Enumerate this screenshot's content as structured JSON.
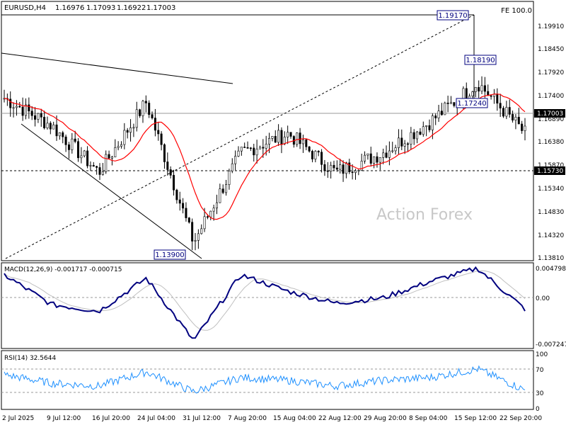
{
  "header": {
    "symbol": "EURUSD,H4",
    "open": "1.16976",
    "high": "1.17093",
    "low": "1.16922",
    "close": "1.17003",
    "fib_label": "FE 100.0"
  },
  "watermark": "Action Forex",
  "price_panel": {
    "ticks": [
      "1.19910",
      "1.18450",
      "1.17920",
      "1.17400",
      "1.16890",
      "1.16380",
      "1.15870",
      "1.15340",
      "1.14830",
      "1.14320",
      "1.13810"
    ],
    "current_price": "1.17003",
    "support_level": "1.15730",
    "annotations": [
      "1.19170",
      "1.18190",
      "1.17240",
      "1.13900"
    ]
  },
  "macd_panel": {
    "label": "MACD(12,26,9) -0.001717 -0.000715",
    "ticks": [
      "0.004798",
      "0.00",
      "-0.007247"
    ],
    "zero_label": "0.00"
  },
  "rsi_panel": {
    "label": "RSI(14) 32.5644",
    "ticks": [
      "100",
      "70",
      "30",
      "0"
    ]
  },
  "time_axis": [
    "2 Jul 2025",
    "9 Jul 12:00",
    "16 Jul 20:00",
    "24 Jul 04:00",
    "31 Jul 12:00",
    "7 Aug 20:00",
    "15 Aug 04:00",
    "22 Aug 12:00",
    "29 Aug 20:00",
    "8 Sep 04:00",
    "15 Sep 12:00",
    "22 Sep 20:00"
  ],
  "chart_data": [
    {
      "type": "line",
      "panel": "price",
      "title": "EURUSD,H4",
      "ylim": [
        1.1381,
        1.1991
      ],
      "series": [
        {
          "name": "close",
          "x": [
            "2 Jul 2025",
            "9 Jul 12:00",
            "16 Jul 20:00",
            "24 Jul 04:00",
            "31 Jul 12:00",
            "7 Aug 20:00",
            "15 Aug 04:00",
            "22 Aug 12:00",
            "29 Aug 20:00",
            "8 Sep 04:00",
            "15 Sep 12:00",
            "22 Sep 20:00"
          ],
          "values": [
            1.179,
            1.172,
            1.16,
            1.178,
            1.142,
            1.165,
            1.17,
            1.16,
            1.165,
            1.173,
            1.183,
            1.17
          ]
        }
      ],
      "color": "#000000",
      "ma_color": "#ff0000",
      "levels": [
        1.1573,
        1.17003
      ]
    },
    {
      "type": "line",
      "panel": "macd",
      "title": "MACD(12,26,9) -0.001717 -0.000715",
      "ylim": [
        -0.007247,
        0.004798
      ],
      "series": [
        {
          "name": "MACD",
          "values": [
            0.0035,
            -0.001,
            -0.002,
            0.003,
            -0.0065,
            0.0035,
            0.001,
            -0.0008,
            0.0,
            0.0025,
            0.0045,
            -0.0017
          ]
        }
      ],
      "color": "#00007f",
      "signal_color": "#c0c0c0"
    },
    {
      "type": "line",
      "panel": "rsi",
      "title": "RSI(14) 32.5644",
      "ylim": [
        0,
        100
      ],
      "series": [
        {
          "name": "RSI",
          "values": [
            60,
            45,
            40,
            65,
            30,
            55,
            50,
            40,
            50,
            55,
            70,
            33
          ]
        }
      ],
      "color": "#1e90ff",
      "levels": [
        70,
        30
      ]
    }
  ]
}
